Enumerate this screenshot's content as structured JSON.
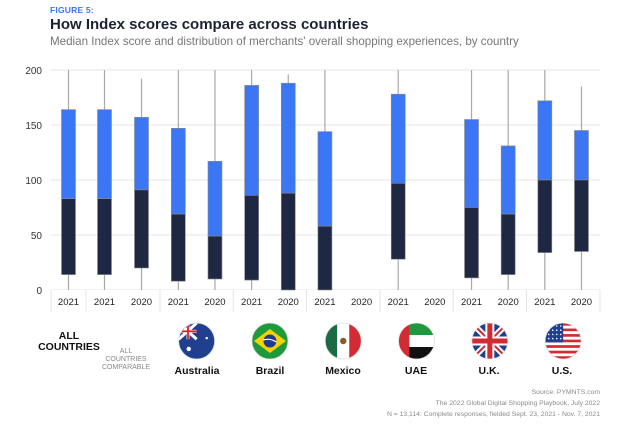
{
  "header": {
    "figure_label": "FIGURE 5:",
    "title": "How Index scores compare across countries",
    "subtitle": "Median Index score and distribution of merchants' overall shopping experiences, by country"
  },
  "colors": {
    "upper": "#3b76f4",
    "lower": "#1e2842",
    "whisker": "#a9a9a9",
    "grid": "#e6e6e6",
    "accent": "#3a75f2"
  },
  "chart_data": {
    "type": "boxplot",
    "title": "How Index scores compare across countries",
    "ylim": [
      0,
      200
    ],
    "yticks": [
      0,
      50,
      100,
      150,
      200
    ],
    "grid": true,
    "legend": "none",
    "groups": [
      {
        "name": "ALL COUNTRIES",
        "flag": "",
        "boxes": [
          {
            "year": "2021",
            "whisker_low": 0,
            "q1": 14,
            "median": 83,
            "q3": 164,
            "whisker_high": 200
          }
        ]
      },
      {
        "name": "ALL COUNTRIES COMPARABLE",
        "flag": "",
        "boxes": [
          {
            "year": "2021",
            "whisker_low": 0,
            "q1": 14,
            "median": 83,
            "q3": 164,
            "whisker_high": 200
          },
          {
            "year": "2020",
            "whisker_low": 0,
            "q1": 20,
            "median": 91,
            "q3": 157,
            "whisker_high": 192
          }
        ]
      },
      {
        "name": "Australia",
        "flag": "australia-flag",
        "boxes": [
          {
            "year": "2021",
            "whisker_low": 0,
            "q1": 8,
            "median": 69,
            "q3": 147,
            "whisker_high": 200
          },
          {
            "year": "2020",
            "whisker_low": 0,
            "q1": 10,
            "median": 49,
            "q3": 117,
            "whisker_high": 200
          }
        ]
      },
      {
        "name": "Brazil",
        "flag": "brazil-flag",
        "boxes": [
          {
            "year": "2021",
            "whisker_low": 0,
            "q1": 9,
            "median": 86,
            "q3": 186,
            "whisker_high": 200
          },
          {
            "year": "2020",
            "whisker_low": 0,
            "q1": 0,
            "median": 88,
            "q3": 188,
            "whisker_high": 196
          }
        ]
      },
      {
        "name": "Mexico",
        "flag": "mexico-flag",
        "boxes": [
          {
            "year": "2021",
            "whisker_low": 0,
            "q1": 0,
            "median": 58,
            "q3": 144,
            "whisker_high": 200
          },
          {
            "year": "2020",
            "whisker_low": null,
            "q1": null,
            "median": null,
            "q3": null,
            "whisker_high": null
          }
        ]
      },
      {
        "name": "UAE",
        "flag": "uae-flag",
        "boxes": [
          {
            "year": "2021",
            "whisker_low": 0,
            "q1": 28,
            "median": 97,
            "q3": 178,
            "whisker_high": 200
          },
          {
            "year": "2020",
            "whisker_low": null,
            "q1": null,
            "median": null,
            "q3": null,
            "whisker_high": null
          }
        ]
      },
      {
        "name": "U.K.",
        "flag": "uk-flag",
        "boxes": [
          {
            "year": "2021",
            "whisker_low": 0,
            "q1": 11,
            "median": 75,
            "q3": 155,
            "whisker_high": 200
          },
          {
            "year": "2020",
            "whisker_low": 0,
            "q1": 14,
            "median": 69,
            "q3": 131,
            "whisker_high": 200
          }
        ]
      },
      {
        "name": "U.S.",
        "flag": "us-flag",
        "boxes": [
          {
            "year": "2021",
            "whisker_low": 0,
            "q1": 34,
            "median": 100,
            "q3": 172,
            "whisker_high": 200
          },
          {
            "year": "2020",
            "whisker_low": 0,
            "q1": 35,
            "median": 100,
            "q3": 145,
            "whisker_high": 185
          }
        ]
      }
    ]
  },
  "labels": {
    "all_countries_line1": "ALL",
    "all_countries_line2": "COUNTRIES",
    "all_comparable_line1": "ALL",
    "all_comparable_line2": "COUNTRIES",
    "all_comparable_line3": "COMPARABLE",
    "countries": [
      "Australia",
      "Brazil",
      "Mexico",
      "UAE",
      "U.K.",
      "U.S."
    ]
  },
  "footer": {
    "source": "Source: PYMNTS.com",
    "report": "The 2022 Global Digital Shopping Playbook, July 2022",
    "sample": "N = 13,114: Complete responses, fielded Sept. 23, 2021 - Nov. 7, 2021"
  }
}
